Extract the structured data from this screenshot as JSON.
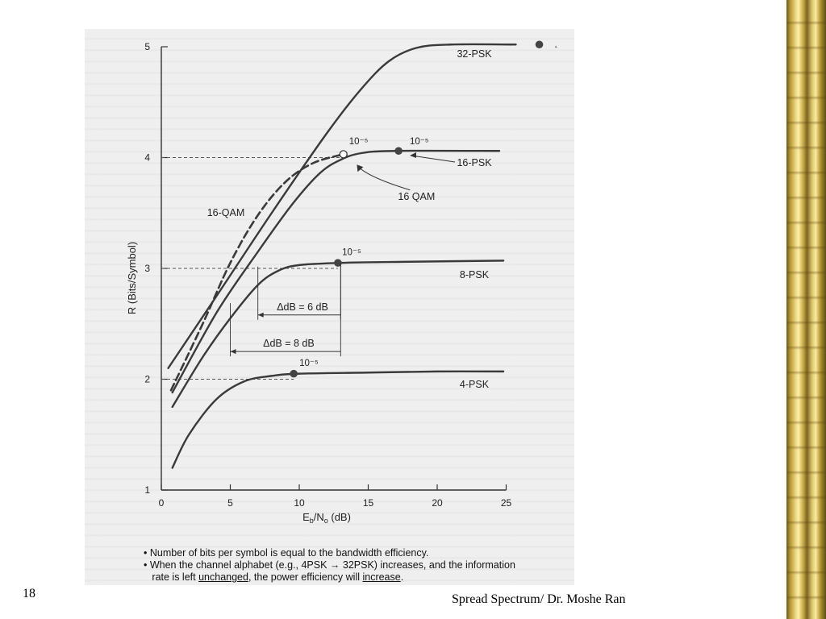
{
  "slide": {
    "number": "18",
    "footer": "Spread Spectrum/ Dr. Moshe Ran"
  },
  "notes": {
    "bullet1": "• Number of bits per symbol is equal to the bandwidth efficiency.",
    "bullet2_part1": "• When the channel alphabet (e.g., 4PSK → 32PSK) increases, and the information",
    "bullet2_part2a": "rate is left ",
    "bullet2_unchanged": "unchanged",
    "bullet2_part2b": ", the power efficiency will ",
    "bullet2_increase": "increase",
    "bullet2_end": "."
  },
  "colors": {
    "frame_gold": "#c9ab4a",
    "scan_bg": "#efefef",
    "ink": "#333333"
  },
  "chart_data": {
    "type": "line",
    "xlabel": "Eb/No (dB)",
    "ylabel": "R (Bits/Symbol)",
    "xlim": [
      0,
      25
    ],
    "ylim": [
      1,
      5
    ],
    "xticks": [
      "0",
      "5",
      "10",
      "15",
      "20",
      "25"
    ],
    "yticks": [
      "1",
      "2",
      "3",
      "4",
      "5"
    ],
    "series": [
      {
        "name": "4-PSK",
        "points": [
          [
            0.8,
            1.2
          ],
          [
            2,
            1.5
          ],
          [
            4,
            1.82
          ],
          [
            6,
            1.98
          ],
          [
            8,
            2.03
          ],
          [
            10,
            2.05
          ],
          [
            15,
            2.06
          ],
          [
            20,
            2.07
          ],
          [
            24.8,
            2.07
          ]
        ],
        "ber_marker": [
          9.6,
          2.05
        ]
      },
      {
        "name": "8-PSK",
        "points": [
          [
            0.8,
            1.75
          ],
          [
            3,
            2.2
          ],
          [
            5,
            2.55
          ],
          [
            7,
            2.85
          ],
          [
            8.5,
            2.98
          ],
          [
            10,
            3.03
          ],
          [
            13,
            3.05
          ],
          [
            18,
            3.06
          ],
          [
            24.8,
            3.07
          ]
        ],
        "ber_marker": [
          12.8,
          3.05
        ]
      },
      {
        "name": "16-PSK",
        "points": [
          [
            0.8,
            1.88
          ],
          [
            4,
            2.6
          ],
          [
            7,
            3.15
          ],
          [
            9.5,
            3.58
          ],
          [
            11.5,
            3.86
          ],
          [
            13,
            3.98
          ],
          [
            14.5,
            4.04
          ],
          [
            17,
            4.06
          ],
          [
            24.5,
            4.06
          ]
        ],
        "ber_marker": [
          17.2,
          4.06
        ]
      },
      {
        "name": "32-PSK",
        "points": [
          [
            0.5,
            2.1
          ],
          [
            4,
            2.75
          ],
          [
            8,
            3.5
          ],
          [
            12,
            4.22
          ],
          [
            14.5,
            4.62
          ],
          [
            16.5,
            4.87
          ],
          [
            18.5,
            4.99
          ],
          [
            21,
            5.02
          ],
          [
            25.7,
            5.02
          ]
        ],
        "ber_marker": [
          27.4,
          5.02
        ]
      },
      {
        "name": "16-QAM",
        "points": [
          [
            0.7,
            1.9
          ],
          [
            3,
            2.5
          ],
          [
            5,
            3.05
          ],
          [
            7,
            3.48
          ],
          [
            9,
            3.78
          ],
          [
            11,
            3.95
          ],
          [
            13.2,
            4.03
          ]
        ],
        "ber_marker": [
          13.2,
          4.03
        ],
        "dashed": true
      }
    ],
    "reference_lines": [
      {
        "y": 2,
        "x_to": 9.6
      },
      {
        "y": 3,
        "x_to": 12.8
      },
      {
        "y": 4,
        "x_to": 13.2
      }
    ],
    "annotations": [
      {
        "text": "ΔdB = 6 dB",
        "from_x": 7,
        "to_x": 13,
        "y": 2.58
      },
      {
        "text": "ΔdB = 8 dB",
        "from_x": 5,
        "to_x": 13,
        "y": 2.25
      },
      {
        "text": "16 QAM",
        "label_x": 18.5,
        "label_y": 3.62,
        "target_x": 14,
        "target_y": 3.98
      },
      {
        "text": "10⁻⁵",
        "x": 10.7,
        "y": 2.12
      },
      {
        "text": "10⁻⁵",
        "x": 13.8,
        "y": 3.12
      },
      {
        "text": "10⁻⁵",
        "x": 14.3,
        "y": 4.12
      },
      {
        "text": "10⁻⁵",
        "x": 18.7,
        "y": 4.12
      }
    ],
    "ber": "10⁻⁵"
  }
}
